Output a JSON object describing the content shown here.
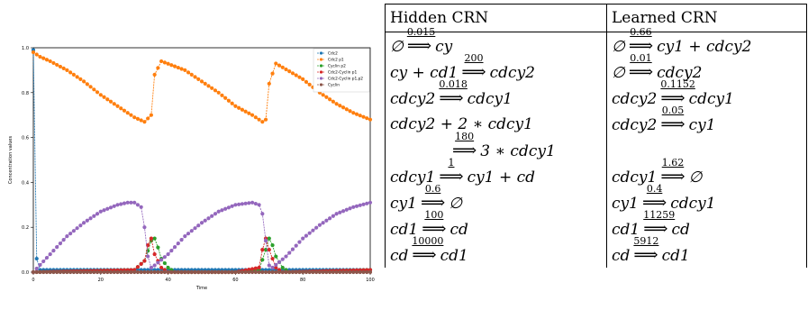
{
  "chart_data": {
    "type": "line",
    "xlabel": "Time",
    "ylabel": "Concentration values",
    "xlim": [
      0,
      100
    ],
    "ylim": [
      0,
      1.0
    ],
    "xticks": [
      "0",
      "20",
      "40",
      "60",
      "80",
      "100"
    ],
    "yticks": [
      "0.0",
      "0.2",
      "0.4",
      "0.6",
      "0.8",
      "1.0"
    ],
    "legend_position": "top-right",
    "series": [
      {
        "name": "Cdc2",
        "color": "#1f77b4",
        "x": [
          0,
          1,
          2,
          10,
          20,
          30,
          34,
          36,
          40,
          50,
          60,
          68,
          70,
          72,
          80,
          90,
          100
        ],
        "y": [
          0.99,
          0.06,
          0.01,
          0.01,
          0.01,
          0.01,
          0.01,
          0.01,
          0.01,
          0.01,
          0.01,
          0.01,
          0.01,
          0.01,
          0.01,
          0.01,
          0.01
        ]
      },
      {
        "name": "Cdc2 p1",
        "color": "#ff7f0e",
        "x": [
          0,
          2,
          5,
          10,
          15,
          20,
          25,
          30,
          33,
          35,
          36,
          38,
          45,
          50,
          55,
          60,
          65,
          68,
          69,
          70,
          72,
          80,
          85,
          90,
          95,
          100
        ],
        "y": [
          0.98,
          0.96,
          0.94,
          0.9,
          0.85,
          0.79,
          0.74,
          0.69,
          0.67,
          0.7,
          0.88,
          0.94,
          0.9,
          0.85,
          0.8,
          0.74,
          0.7,
          0.67,
          0.68,
          0.84,
          0.93,
          0.86,
          0.8,
          0.75,
          0.71,
          0.68
        ]
      },
      {
        "name": "Cyclin p2",
        "color": "#2ca02c",
        "x": [
          0,
          30,
          33,
          35,
          36,
          37,
          38,
          40,
          42,
          60,
          67,
          69,
          70,
          71,
          72,
          74,
          76,
          100
        ],
        "y": [
          0.0,
          0.01,
          0.05,
          0.14,
          0.15,
          0.11,
          0.06,
          0.02,
          0.0,
          0.0,
          0.01,
          0.1,
          0.15,
          0.12,
          0.07,
          0.02,
          0.0,
          0.01
        ]
      },
      {
        "name": "Cdc2-Cyclin p1",
        "color": "#d62728",
        "x": [
          0,
          30,
          33,
          34,
          35,
          36,
          38,
          40,
          60,
          67,
          68,
          69,
          70,
          72,
          74,
          100
        ],
        "y": [
          0.0,
          0.01,
          0.05,
          0.12,
          0.15,
          0.08,
          0.02,
          0.0,
          0.0,
          0.02,
          0.1,
          0.15,
          0.1,
          0.02,
          0.0,
          0.01
        ]
      },
      {
        "name": "Cdc2-Cyclin p1,p2",
        "color": "#9467bd",
        "x": [
          0,
          5,
          10,
          15,
          20,
          25,
          28,
          30,
          32,
          33,
          34,
          35,
          36,
          40,
          45,
          50,
          55,
          60,
          65,
          67,
          68,
          69,
          70,
          71,
          75,
          80,
          85,
          90,
          95,
          100
        ],
        "y": [
          0.0,
          0.08,
          0.16,
          0.22,
          0.27,
          0.3,
          0.31,
          0.31,
          0.29,
          0.2,
          0.07,
          0.02,
          0.03,
          0.08,
          0.16,
          0.22,
          0.27,
          0.3,
          0.31,
          0.3,
          0.26,
          0.14,
          0.03,
          0.02,
          0.07,
          0.15,
          0.21,
          0.26,
          0.29,
          0.31
        ]
      },
      {
        "name": "Cyclin",
        "color": "#8c564b",
        "x": [
          0,
          20,
          40,
          60,
          80,
          100
        ],
        "y": [
          0.0,
          0.0,
          0.0,
          0.0,
          0.0,
          0.0
        ]
      }
    ]
  },
  "table": {
    "headers": [
      "Hidden CRN",
      "Learned CRN"
    ],
    "rows": [
      [
        {
          "lhs": "∅",
          "rate": "0.015",
          "rhs": "cy"
        },
        {
          "lhs": "∅",
          "rate": "0.66",
          "rhs": "cy1 + cdcy2"
        }
      ],
      [
        {
          "lhs": "cy + cd1",
          "rate": "200",
          "rhs": "cdcy2"
        },
        {
          "lhs": "∅",
          "rate": "0.01",
          "rhs": "cdcy2"
        }
      ],
      [
        {
          "lhs": "cdcy2",
          "rate": "0.018",
          "rhs": "cdcy1"
        },
        {
          "lhs": "cdcy2",
          "rate": "0.1152",
          "rhs": "cdcy1"
        }
      ],
      [
        {
          "lhs": "cdcy2 + 2 ∗ cdcy1",
          "rate": "",
          "rhs": ""
        },
        {
          "lhs": "cdcy2",
          "rate": "0.05",
          "rhs": "cy1"
        }
      ],
      [
        {
          "lhs": "",
          "rate": "180",
          "rhs": "3 ∗ cdcy1"
        },
        {
          "lhs": "",
          "rate": "",
          "rhs": ""
        }
      ],
      [
        {
          "lhs": "cdcy1",
          "rate": "1",
          "rhs": "cy1 + cd"
        },
        {
          "lhs": "cdcy1",
          "rate": "1.62",
          "rhs": "∅"
        }
      ],
      [
        {
          "lhs": "cy1",
          "rate": "0.6",
          "rhs": "∅"
        },
        {
          "lhs": "cy1",
          "rate": "0.4",
          "rhs": "cdcy1"
        }
      ],
      [
        {
          "lhs": "cd1",
          "rate": "100",
          "rhs": "cd"
        },
        {
          "lhs": "cd1",
          "rate": "11259",
          "rhs": "cd"
        }
      ],
      [
        {
          "lhs": "cd",
          "rate": "10000",
          "rhs": "cd1"
        },
        {
          "lhs": "cd",
          "rate": "5912",
          "rhs": "cd1"
        }
      ]
    ]
  }
}
